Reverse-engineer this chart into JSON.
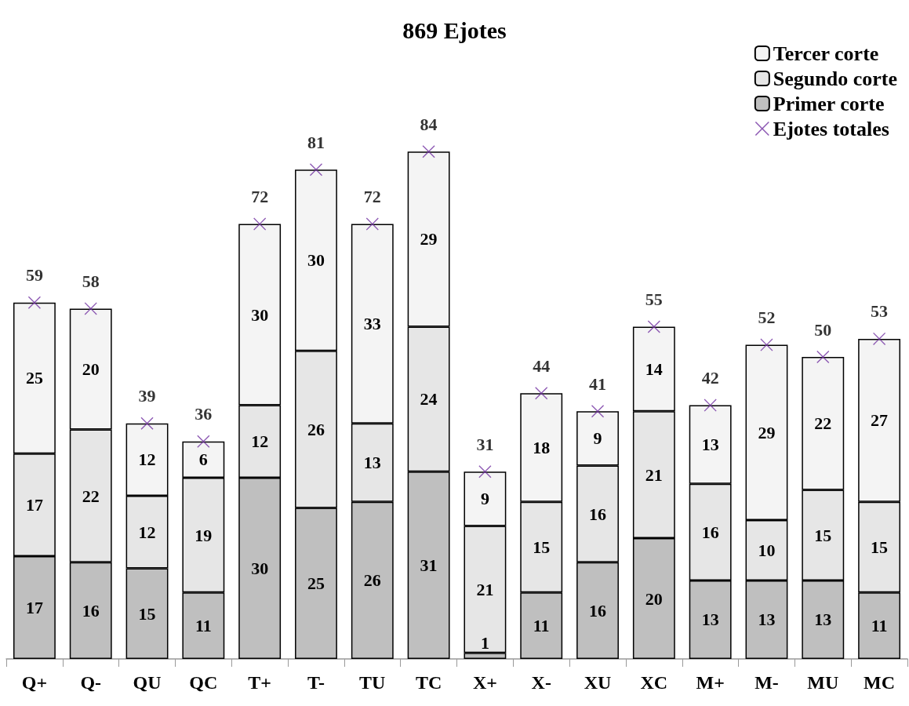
{
  "chart_data": {
    "type": "bar",
    "title": "869 Ejotes",
    "stacked": true,
    "data_labels": true,
    "legend": "top right",
    "marker": "cross",
    "categories": [
      "Q+",
      "Q-",
      "QU",
      "QC",
      "T+",
      "T-",
      "TU",
      "TC",
      "X+",
      "X-",
      "XU",
      "XC",
      "M+",
      "M-",
      "MU",
      "MC"
    ],
    "series": [
      {
        "name": "Primer corte",
        "color": "#bfbfbf",
        "values": [
          17,
          16,
          15,
          11,
          30,
          25,
          26,
          31,
          1,
          11,
          16,
          20,
          13,
          13,
          13,
          11
        ]
      },
      {
        "name": "Segundo corte",
        "color": "#e6e6e6",
        "values": [
          17,
          22,
          12,
          19,
          12,
          26,
          13,
          24,
          21,
          15,
          16,
          21,
          16,
          10,
          15,
          15
        ]
      },
      {
        "name": "Tercer corte",
        "color": "#f4f4f4",
        "values": [
          25,
          20,
          12,
          6,
          30,
          30,
          33,
          29,
          9,
          18,
          9,
          14,
          13,
          29,
          22,
          27
        ]
      },
      {
        "name": "Ejotes totales",
        "type": "scatter",
        "color": "#7030a0",
        "x": [
          "Q+",
          "Q-",
          "QU",
          "QC",
          "T+",
          "T-",
          "TU",
          "TC",
          "X+",
          "X-",
          "XU",
          "XC",
          "M+",
          "M-",
          "MU",
          "MC"
        ],
        "values": [
          59,
          58,
          39,
          36,
          72,
          81,
          72,
          84,
          31,
          44,
          41,
          55,
          42,
          52,
          50,
          53
        ]
      }
    ]
  }
}
